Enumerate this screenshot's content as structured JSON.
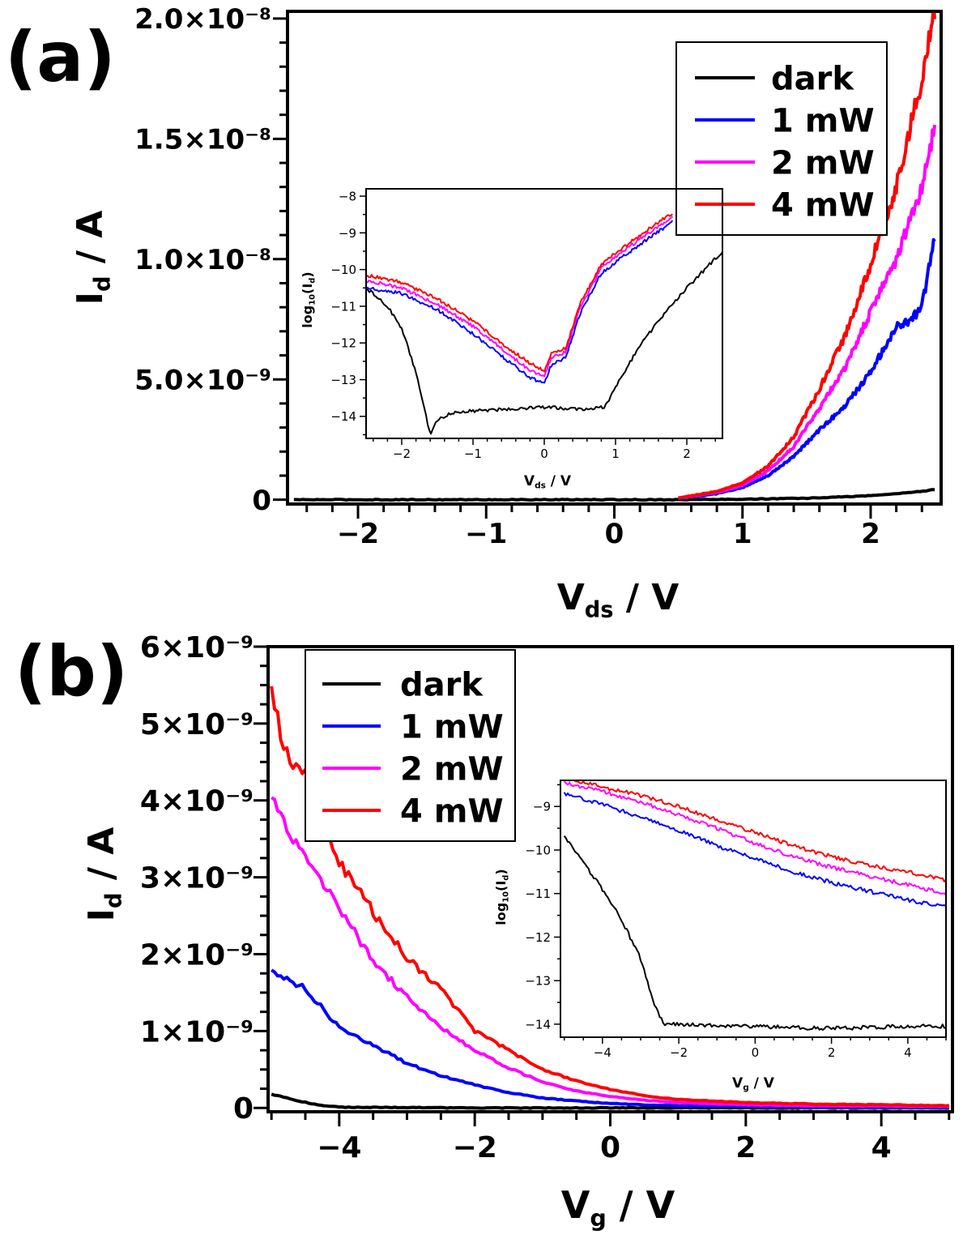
{
  "figure": {
    "panels": [
      "(a)",
      "(b)"
    ]
  },
  "chart_data": [
    {
      "id": "a-main",
      "panel": "(a)",
      "type": "line",
      "xlabel": "V",
      "xlabel_sub": "ds",
      "xlabel_unit": " / V",
      "ylabel": "I",
      "ylabel_sub": "d",
      "ylabel_unit": " / A",
      "xlim": [
        -2.55,
        2.55
      ],
      "ylim": [
        -1.8e-10,
        2.03e-08
      ],
      "x_ticks": [
        -2,
        -1,
        0,
        1,
        2
      ],
      "x_tick_labels": [
        "−2",
        "−1",
        "0",
        "1",
        "2"
      ],
      "y_ticks": [
        0,
        5e-09,
        1e-08,
        1.5e-08,
        2e-08
      ],
      "y_tick_labels": [
        "0",
        "5.0×10⁻⁹",
        "1.0×10⁻⁸",
        "1.5×10⁻⁸",
        "2.0×10⁻⁸"
      ],
      "legend_position": "top-right",
      "series": [
        {
          "name": "dark",
          "color": "#000000",
          "x": [
            -2.5,
            -1.5,
            -0.5,
            0.5,
            1.0,
            1.5,
            1.8,
            2.0,
            2.2,
            2.4,
            2.5
          ],
          "y": [
            0,
            0,
            0,
            0,
            2e-11,
            6e-11,
            1.2e-10,
            1.7e-10,
            2.5e-10,
            3.5e-10,
            4.2e-10
          ]
        },
        {
          "name": "1 mW",
          "color": "#0000ff",
          "x": [
            0.5,
            0.8,
            1.0,
            1.2,
            1.4,
            1.6,
            1.8,
            2.0,
            2.2,
            2.3,
            2.4,
            2.5
          ],
          "y": [
            5e-11,
            2.5e-10,
            5e-10,
            1e-09,
            1.8e-09,
            2.9e-09,
            3.9e-09,
            5.3e-09,
            7.2e-09,
            7.4e-09,
            8e-09,
            1.1e-08
          ]
        },
        {
          "name": "2 mW",
          "color": "#ff00ff",
          "x": [
            0.5,
            0.8,
            1.0,
            1.2,
            1.4,
            1.6,
            1.8,
            2.0,
            2.2,
            2.4,
            2.5
          ],
          "y": [
            6e-11,
            3e-10,
            6e-10,
            1.2e-09,
            2.2e-09,
            3.8e-09,
            5.5e-09,
            7.8e-09,
            1e-08,
            1.3e-08,
            1.55e-08
          ]
        },
        {
          "name": "4 mW",
          "color": "#ff0000",
          "x": [
            0.5,
            0.8,
            1.0,
            1.2,
            1.4,
            1.6,
            1.8,
            2.0,
            2.2,
            2.4,
            2.5
          ],
          "y": [
            7e-11,
            3.5e-10,
            7e-10,
            1.4e-09,
            2.6e-09,
            4.6e-09,
            6.8e-09,
            9.8e-09,
            1.3e-08,
            1.75e-08,
            2.03e-08
          ]
        }
      ]
    },
    {
      "id": "a-inset",
      "panel": "(a)",
      "type": "line",
      "xlabel": "V",
      "xlabel_sub": "ds",
      "xlabel_unit": " / V",
      "ylabel": "log",
      "ylabel_sub": "10",
      "ylabel_unit": "(I",
      "ylabel_sub2": "d",
      "ylabel_end": ")",
      "xlim": [
        -2.5,
        2.5
      ],
      "ylim": [
        -14.6,
        -7.8
      ],
      "x_ticks": [
        -2,
        -1,
        0,
        1,
        2
      ],
      "x_tick_labels": [
        "−2",
        "−1",
        "0",
        "1",
        "2"
      ],
      "y_ticks": [
        -14,
        -13,
        -12,
        -11,
        -10,
        -9,
        -8
      ],
      "y_tick_labels": [
        "−14",
        "−13",
        "−12",
        "−11",
        "−10",
        "−9",
        "−8"
      ],
      "series": [
        {
          "name": "dark",
          "color": "#000000",
          "x": [
            -2.5,
            -2.2,
            -2.0,
            -1.8,
            -1.6,
            -1.5,
            -1.3,
            -1.0,
            -0.5,
            0.0,
            0.5,
            0.85,
            1.0,
            1.3,
            1.6,
            2.0,
            2.3,
            2.5
          ],
          "y": [
            -10.5,
            -11.0,
            -11.6,
            -12.8,
            -14.5,
            -14.1,
            -13.9,
            -13.85,
            -13.8,
            -13.75,
            -13.8,
            -13.75,
            -13.2,
            -12.2,
            -11.4,
            -10.5,
            -9.9,
            -9.5
          ]
        },
        {
          "name": "1 mW",
          "color": "#0000ff",
          "x": [
            -2.5,
            -2.0,
            -1.5,
            -1.0,
            -0.5,
            -0.2,
            0.0,
            0.1,
            0.3,
            0.5,
            0.8,
            1.0,
            1.5,
            1.8
          ],
          "y": [
            -10.5,
            -10.65,
            -11.1,
            -11.75,
            -12.5,
            -12.95,
            -13.1,
            -12.6,
            -12.4,
            -11.2,
            -10.1,
            -9.8,
            -9.1,
            -8.7
          ]
        },
        {
          "name": "2 mW",
          "color": "#ff00ff",
          "x": [
            -2.5,
            -2.0,
            -1.5,
            -1.0,
            -0.5,
            -0.2,
            0.0,
            0.1,
            0.3,
            0.5,
            0.8,
            1.0,
            1.5,
            1.8
          ],
          "y": [
            -10.3,
            -10.5,
            -10.95,
            -11.55,
            -12.3,
            -12.75,
            -12.9,
            -12.4,
            -12.25,
            -11.05,
            -9.95,
            -9.65,
            -8.95,
            -8.55
          ]
        },
        {
          "name": "4 mW",
          "color": "#ff0000",
          "x": [
            -2.5,
            -2.0,
            -1.5,
            -1.0,
            -0.5,
            -0.2,
            0.0,
            0.1,
            0.3,
            0.5,
            0.8,
            1.0,
            1.5,
            1.8
          ],
          "y": [
            -10.15,
            -10.35,
            -10.8,
            -11.4,
            -12.15,
            -12.55,
            -12.75,
            -12.3,
            -12.15,
            -10.95,
            -9.85,
            -9.55,
            -8.85,
            -8.45
          ]
        }
      ]
    },
    {
      "id": "b-main",
      "panel": "(b)",
      "type": "line",
      "xlabel": "V",
      "xlabel_sub": "g",
      "xlabel_unit": " / V",
      "ylabel": "I",
      "ylabel_sub": "d",
      "ylabel_unit": " / A",
      "xlim": [
        -5.05,
        5.05
      ],
      "ylim": [
        -5e-11,
        6e-09
      ],
      "x_ticks": [
        -4,
        -2,
        0,
        2,
        4
      ],
      "x_tick_labels": [
        "−4",
        "−2",
        "0",
        "2",
        "4"
      ],
      "y_ticks": [
        0,
        1e-09,
        2e-09,
        3e-09,
        4e-09,
        5e-09,
        6e-09
      ],
      "y_tick_labels": [
        "0",
        "1×10⁻⁹",
        "2×10⁻⁹",
        "3×10⁻⁹",
        "4×10⁻⁹",
        "5×10⁻⁹",
        "6×10⁻⁹"
      ],
      "legend_position": "top-left",
      "series": [
        {
          "name": "dark",
          "color": "#000000",
          "x": [
            -5.0,
            -4.6,
            -4.3,
            -4.0,
            -2.0,
            0.0,
            2.0,
            5.0
          ],
          "y": [
            1.8e-10,
            9e-11,
            4e-11,
            1e-11,
            0.0,
            0.0,
            0.0,
            0.0
          ]
        },
        {
          "name": "1 mW",
          "color": "#0000ff",
          "x": [
            -5.0,
            -4.5,
            -4.0,
            -3.5,
            -3.0,
            -2.5,
            -2.0,
            -1.5,
            -1.0,
            -0.5,
            0.0,
            0.5,
            1.0,
            2.0,
            3.0,
            5.0
          ],
          "y": [
            1.8e-09,
            1.55e-09,
            1.05e-09,
            8.2e-10,
            5.8e-10,
            4.2e-10,
            3e-10,
            2e-10,
            1.3e-10,
            9e-11,
            6e-11,
            4e-11,
            3e-11,
            2e-11,
            1e-11,
            0.0
          ]
        },
        {
          "name": "2 mW",
          "color": "#ff00ff",
          "x": [
            -5.0,
            -4.7,
            -4.4,
            -4.0,
            -3.5,
            -3.0,
            -2.5,
            -2.0,
            -1.5,
            -1.0,
            -0.5,
            0.0,
            0.5,
            1.0,
            2.0,
            3.0,
            5.0
          ],
          "y": [
            4.05e-09,
            3.5e-09,
            3.15e-09,
            2.6e-09,
            1.9e-09,
            1.45e-09,
            1.05e-09,
            7.5e-10,
            5.2e-10,
            3.4e-10,
            2.2e-10,
            1.5e-10,
            1e-10,
            7e-11,
            4e-11,
            3e-11,
            2e-11
          ]
        },
        {
          "name": "4 mW",
          "color": "#ff0000",
          "x": [
            -5.0,
            -4.8,
            -4.5,
            -4.2,
            -4.0,
            -3.5,
            -3.0,
            -2.5,
            -2.0,
            -1.5,
            -1.0,
            -0.5,
            0.0,
            0.5,
            1.0,
            2.0,
            3.0,
            5.0
          ],
          "y": [
            5.5e-09,
            4.6e-09,
            4.3e-09,
            3.6e-09,
            3.2e-09,
            2.55e-09,
            1.95e-09,
            1.55e-09,
            1e-09,
            7.5e-10,
            5e-10,
            3.5e-10,
            2.4e-10,
            1.6e-10,
            1.1e-10,
            7e-11,
            5e-11,
            3e-11
          ]
        }
      ]
    },
    {
      "id": "b-inset",
      "panel": "(b)",
      "type": "line",
      "xlabel": "V",
      "xlabel_sub": "g",
      "xlabel_unit": " / V",
      "ylabel": "log",
      "ylabel_sub": "10",
      "ylabel_unit": "(I",
      "ylabel_sub2": "d",
      "ylabel_end": ")",
      "xlim": [
        -5.1,
        5.0
      ],
      "ylim": [
        -14.3,
        -8.4
      ],
      "x_ticks": [
        -4,
        -2,
        0,
        2,
        4
      ],
      "x_tick_labels": [
        "−4",
        "−2",
        "0",
        "2",
        "4"
      ],
      "y_ticks": [
        -14,
        -13,
        -12,
        -11,
        -10,
        -9
      ],
      "y_tick_labels": [
        "−14",
        "−13",
        "−12",
        "−11",
        "−10",
        "−9"
      ],
      "series": [
        {
          "name": "dark",
          "color": "#000000",
          "x": [
            -5.0,
            -4.5,
            -4.0,
            -3.5,
            -3.0,
            -2.7,
            -2.4,
            -2.0,
            0.0,
            2.0,
            4.0,
            5.0
          ],
          "y": [
            -9.7,
            -10.3,
            -10.9,
            -11.6,
            -12.5,
            -13.4,
            -14.0,
            -14.0,
            -14.05,
            -14.1,
            -14.05,
            -14.05
          ]
        },
        {
          "name": "1 mW",
          "color": "#0000ff",
          "x": [
            -5.0,
            -4.0,
            -3.0,
            -2.0,
            -1.0,
            0.0,
            1.0,
            2.0,
            3.0,
            4.0,
            5.0
          ],
          "y": [
            -8.7,
            -8.95,
            -9.25,
            -9.55,
            -9.9,
            -10.2,
            -10.5,
            -10.75,
            -10.95,
            -11.15,
            -11.3
          ]
        },
        {
          "name": "2 mW",
          "color": "#ff00ff",
          "x": [
            -5.0,
            -4.0,
            -3.0,
            -2.0,
            -1.0,
            0.0,
            1.0,
            2.0,
            3.0,
            4.0,
            5.0
          ],
          "y": [
            -8.45,
            -8.65,
            -8.9,
            -9.2,
            -9.5,
            -9.85,
            -10.15,
            -10.4,
            -10.6,
            -10.8,
            -11.0
          ]
        },
        {
          "name": "4 mW",
          "color": "#ff0000",
          "x": [
            -5.0,
            -4.0,
            -3.0,
            -2.0,
            -1.0,
            0.0,
            1.0,
            2.0,
            3.0,
            4.0,
            5.0
          ],
          "y": [
            -8.35,
            -8.55,
            -8.75,
            -9.0,
            -9.3,
            -9.6,
            -9.9,
            -10.15,
            -10.35,
            -10.5,
            -10.7
          ]
        }
      ]
    }
  ]
}
